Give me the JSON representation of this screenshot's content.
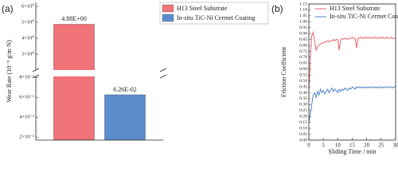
{
  "chart_data": [
    {
      "type": "bar",
      "label": "(a)",
      "ylabel": "Wear Rate (10⁻⁹ g/m·N)",
      "series": [
        {
          "name": "H13 Steel Substrate",
          "color": "#f07378",
          "values": [
            4.88
          ],
          "value_labels": [
            "4.88E+00"
          ]
        },
        {
          "name": "In-situ TiC-Ni Cermet Coating",
          "color": "#5b8ccc",
          "values": [
            0.0626
          ],
          "value_labels": [
            "6.26E-02"
          ]
        }
      ],
      "ylim": [
        0.017,
        0.081
      ],
      "yticks": [
        {
          "value": 0.02,
          "label": "2×10⁻²"
        },
        {
          "value": 0.04,
          "label": "4×10⁻²"
        },
        {
          "value": 0.06,
          "label": "6×10⁻²"
        },
        {
          "value": 0.08,
          "label": "8×10⁻²"
        }
      ],
      "upper_ylim": [
        2,
        6.25
      ],
      "upper_yticks": [
        {
          "value": 3,
          "label": "3×10⁰"
        },
        {
          "value": 4,
          "label": "4×10⁰"
        },
        {
          "value": 5,
          "label": "5×10⁰"
        },
        {
          "value": 6,
          "label": "6×10⁰"
        }
      ]
    },
    {
      "type": "line",
      "label": "(b)",
      "xlabel": "Sliding Time / min",
      "ylabel": "Friction Coefficient",
      "x": [
        0,
        0.5,
        1,
        1.5,
        2,
        2.5,
        3,
        3.5,
        4,
        4.5,
        5,
        5.5,
        6,
        6.5,
        7,
        7.5,
        8,
        8.5,
        9,
        9.5,
        10,
        10.5,
        11,
        11.5,
        12,
        12.5,
        13,
        13.5,
        14,
        14.5,
        15,
        15.5,
        16,
        16.5,
        17,
        17.5,
        18,
        18.5,
        19,
        19.5,
        20,
        20.5,
        21,
        21.5,
        22,
        22.5,
        23,
        23.5,
        24,
        24.5,
        25,
        25.5,
        26,
        26.5,
        27,
        27.5,
        28,
        28.5,
        29,
        29.5,
        30
      ],
      "series": [
        {
          "name": "H13 Steel Substrate",
          "color": "#e8606a",
          "values": [
            0.42,
            0.7,
            0.88,
            0.91,
            0.84,
            0.76,
            0.79,
            0.8,
            0.81,
            0.82,
            0.82,
            0.83,
            0.83,
            0.84,
            0.83,
            0.84,
            0.84,
            0.85,
            0.84,
            0.85,
            0.85,
            0.76,
            0.85,
            0.86,
            0.85,
            0.86,
            0.86,
            0.85,
            0.86,
            0.86,
            0.87,
            0.86,
            0.86,
            0.78,
            0.86,
            0.86,
            0.87,
            0.86,
            0.86,
            0.87,
            0.86,
            0.87,
            0.86,
            0.86,
            0.87,
            0.86,
            0.87,
            0.86,
            0.86,
            0.87,
            0.86,
            0.87,
            0.86,
            0.86,
            0.87,
            0.86,
            0.86,
            0.87,
            0.86,
            0.86,
            0.86
          ]
        },
        {
          "name": "In-situ TiC-Ni Cermet Coating",
          "color": "#4f84c4",
          "values": [
            0.15,
            0.22,
            0.3,
            0.38,
            0.4,
            0.36,
            0.41,
            0.38,
            0.43,
            0.4,
            0.42,
            0.39,
            0.41,
            0.43,
            0.4,
            0.42,
            0.44,
            0.41,
            0.43,
            0.42,
            0.4,
            0.43,
            0.41,
            0.43,
            0.42,
            0.44,
            0.43,
            0.42,
            0.44,
            0.43,
            0.45,
            0.44,
            0.43,
            0.45,
            0.44,
            0.45,
            0.44,
            0.45,
            0.44,
            0.45,
            0.44,
            0.45,
            0.44,
            0.45,
            0.45,
            0.44,
            0.45,
            0.44,
            0.45,
            0.45,
            0.44,
            0.45,
            0.44,
            0.45,
            0.45,
            0.44,
            0.45,
            0.45,
            0.44,
            0.45,
            0.45
          ]
        }
      ],
      "xlim": [
        0,
        30
      ],
      "xticks": [
        0,
        5,
        10,
        15,
        20,
        25,
        30
      ],
      "ylim": [
        0,
        1.15
      ],
      "yticks": [
        {
          "value": 0,
          "label": "0.00"
        },
        {
          "value": 0.05,
          "label": "0.05"
        },
        {
          "value": 0.1,
          "label": "0.10"
        },
        {
          "value": 0.15,
          "label": "0.15"
        },
        {
          "value": 0.2,
          "label": "0.20"
        },
        {
          "value": 0.25,
          "label": "0.25"
        },
        {
          "value": 0.3,
          "label": "0.30"
        },
        {
          "value": 0.35,
          "label": "0.35"
        },
        {
          "value": 0.4,
          "label": "0.40"
        },
        {
          "value": 0.45,
          "label": "0.45"
        },
        {
          "value": 0.5,
          "label": "0.50"
        },
        {
          "value": 0.55,
          "label": "0.55"
        },
        {
          "value": 0.6,
          "label": "0.60"
        },
        {
          "value": 0.65,
          "label": "0.65"
        },
        {
          "value": 0.7,
          "label": "0.70"
        },
        {
          "value": 0.75,
          "label": "0.75"
        },
        {
          "value": 0.8,
          "label": "0.80"
        },
        {
          "value": 0.85,
          "label": "0.85"
        },
        {
          "value": 0.9,
          "label": "0.90"
        },
        {
          "value": 0.95,
          "label": "0.95"
        },
        {
          "value": 1,
          "label": "1.00"
        },
        {
          "value": 1.05,
          "label": "1.05"
        },
        {
          "value": 1.1,
          "label": "1.10"
        },
        {
          "value": 1.15,
          "label": "1.15"
        }
      ]
    }
  ]
}
